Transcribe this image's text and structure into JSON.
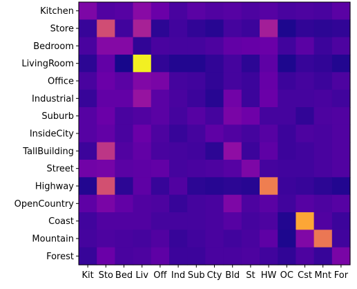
{
  "chart_data": {
    "type": "heatmap",
    "title": "",
    "xlabel": "",
    "ylabel": "",
    "x_tick_labels": [
      "Kit",
      "Sto",
      "Bed",
      "Liv",
      "Off",
      "Ind",
      "Sub",
      "Cty",
      "Bld",
      "St",
      "HW",
      "OC",
      "Cst",
      "Mnt",
      "For"
    ],
    "y_tick_labels": [
      "Kitchen",
      "Store",
      "Bedroom",
      "LivingRoom",
      "Office",
      "Industrial",
      "Suburb",
      "InsideCity",
      "TallBuilding",
      "Street",
      "Highway",
      "OpenCountry",
      "Coast",
      "Mountain",
      "Forest"
    ],
    "colormap": "plasma",
    "value_range": [
      0,
      1
    ],
    "rows": [
      [
        0.25,
        0.14,
        0.15,
        0.28,
        0.2,
        0.12,
        0.16,
        0.14,
        0.15,
        0.13,
        0.15,
        0.12,
        0.13,
        0.12,
        0.16
      ],
      [
        0.08,
        0.52,
        0.1,
        0.37,
        0.06,
        0.1,
        0.07,
        0.05,
        0.11,
        0.09,
        0.36,
        0.03,
        0.07,
        0.06,
        0.07
      ],
      [
        0.12,
        0.27,
        0.27,
        0.07,
        0.12,
        0.11,
        0.11,
        0.13,
        0.18,
        0.19,
        0.2,
        0.1,
        0.16,
        0.09,
        0.13
      ],
      [
        0.06,
        0.18,
        0.02,
        0.98,
        0.07,
        0.04,
        0.04,
        0.07,
        0.11,
        0.06,
        0.17,
        0.03,
        0.08,
        0.07,
        0.04
      ],
      [
        0.12,
        0.2,
        0.16,
        0.26,
        0.24,
        0.11,
        0.1,
        0.07,
        0.11,
        0.09,
        0.19,
        0.09,
        0.11,
        0.09,
        0.13
      ],
      [
        0.08,
        0.18,
        0.18,
        0.32,
        0.16,
        0.12,
        0.09,
        0.05,
        0.22,
        0.09,
        0.2,
        0.11,
        0.11,
        0.12,
        0.1
      ],
      [
        0.15,
        0.2,
        0.12,
        0.14,
        0.16,
        0.11,
        0.15,
        0.11,
        0.24,
        0.21,
        0.11,
        0.11,
        0.07,
        0.13,
        0.14
      ],
      [
        0.15,
        0.18,
        0.12,
        0.2,
        0.13,
        0.08,
        0.11,
        0.17,
        0.14,
        0.11,
        0.15,
        0.09,
        0.13,
        0.12,
        0.14
      ],
      [
        0.09,
        0.44,
        0.14,
        0.18,
        0.12,
        0.11,
        0.1,
        0.06,
        0.3,
        0.09,
        0.17,
        0.09,
        0.1,
        0.12,
        0.14
      ],
      [
        0.22,
        0.23,
        0.16,
        0.17,
        0.18,
        0.11,
        0.12,
        0.13,
        0.15,
        0.25,
        0.11,
        0.1,
        0.1,
        0.12,
        0.14
      ],
      [
        0.04,
        0.53,
        0.06,
        0.17,
        0.08,
        0.14,
        0.06,
        0.05,
        0.06,
        0.05,
        0.68,
        0.09,
        0.08,
        0.06,
        0.04
      ],
      [
        0.17,
        0.24,
        0.18,
        0.14,
        0.13,
        0.08,
        0.11,
        0.12,
        0.25,
        0.13,
        0.16,
        0.1,
        0.15,
        0.13,
        0.15
      ],
      [
        0.1,
        0.14,
        0.14,
        0.14,
        0.11,
        0.11,
        0.11,
        0.12,
        0.15,
        0.11,
        0.13,
        0.04,
        0.8,
        0.14,
        0.09
      ],
      [
        0.11,
        0.13,
        0.12,
        0.11,
        0.14,
        0.08,
        0.1,
        0.12,
        0.1,
        0.12,
        0.17,
        0.03,
        0.26,
        0.66,
        0.1
      ],
      [
        0.08,
        0.2,
        0.12,
        0.13,
        0.17,
        0.09,
        0.09,
        0.12,
        0.12,
        0.13,
        0.1,
        0.07,
        0.13,
        0.08,
        0.24
      ]
    ]
  }
}
